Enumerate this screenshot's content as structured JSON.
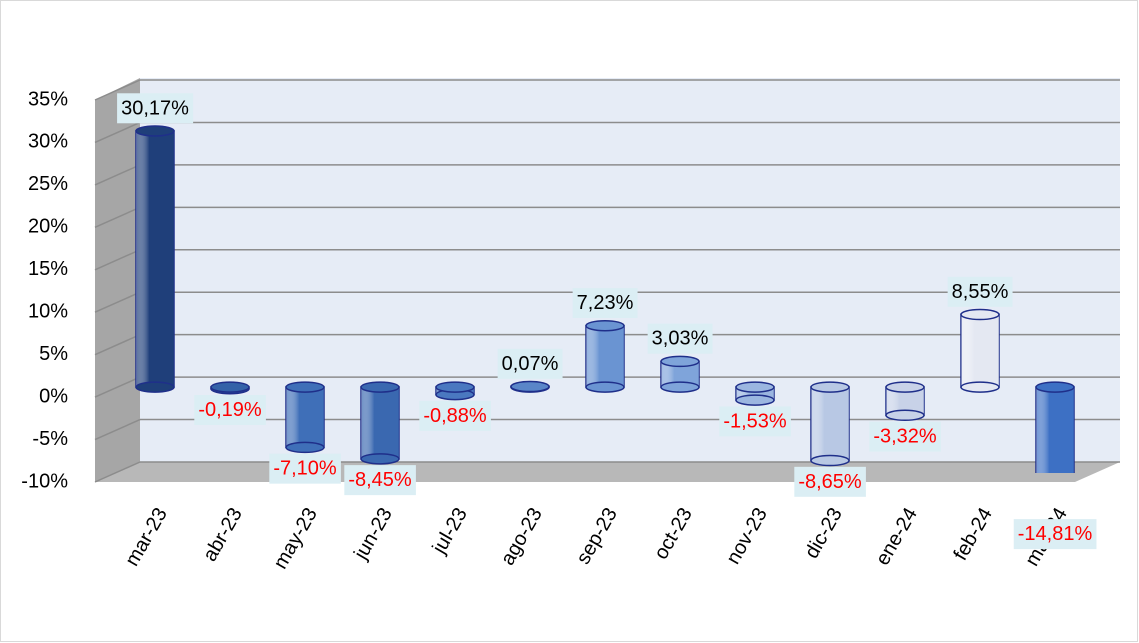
{
  "chart_data": {
    "type": "bar",
    "categories": [
      "mar-23",
      "abr-23",
      "may-23",
      "jun-23",
      "jul-23",
      "ago-23",
      "sep-23",
      "oct-23",
      "nov-23",
      "dic-23",
      "ene-24",
      "feb-24",
      "mar-24"
    ],
    "values": [
      30.17,
      -0.19,
      -7.1,
      -8.45,
      -0.88,
      0.07,
      7.23,
      3.03,
      -1.53,
      -8.65,
      -3.32,
      8.55,
      -14.81
    ],
    "value_labels": [
      "30,17%",
      "-0,19%",
      "-7,10%",
      "-8,45%",
      "-0,88%",
      "0,07%",
      "7,23%",
      "3,03%",
      "-1,53%",
      "-8,65%",
      "-3,32%",
      "8,55%",
      "-14,81%"
    ],
    "colors": [
      "#1f3f7a",
      "#3462a8",
      "#3f6fb8",
      "#3a68b0",
      "#4a78c0",
      "#5a86c8",
      "#6a94d2",
      "#7fa4da",
      "#9bb6e0",
      "#b8c8e4",
      "#c8d2e8",
      "#e4e8f2",
      "#3d70c4"
    ],
    "ylim": [
      -10,
      35
    ],
    "yticks": [
      {
        "value": -10,
        "label": "-10%"
      },
      {
        "value": -5,
        "label": "-5%"
      },
      {
        "value": 0,
        "label": "0%"
      },
      {
        "value": 5,
        "label": "5%"
      },
      {
        "value": 10,
        "label": "10%"
      },
      {
        "value": 15,
        "label": "15%"
      },
      {
        "value": 20,
        "label": "20%"
      },
      {
        "value": 25,
        "label": "25%"
      },
      {
        "value": 30,
        "label": "30%"
      },
      {
        "value": 35,
        "label": "35%"
      }
    ],
    "grid": true
  }
}
